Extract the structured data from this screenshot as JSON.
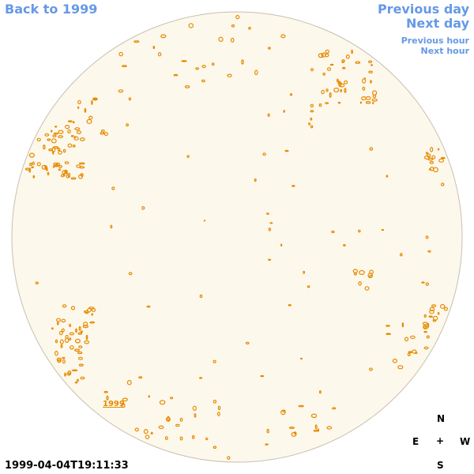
{
  "nav": {
    "back_label": "Back to 1999",
    "prev_day_label": "Previous day",
    "next_day_label": "Next day",
    "prev_hour_label": "Previous hour",
    "next_hour_label": "Next hour"
  },
  "map": {
    "year_label": "1999",
    "timestamp": "1999-04-04T19:11:33"
  },
  "compass": {
    "north": "N",
    "east": "E",
    "center": "+",
    "west": "W",
    "south": "S"
  },
  "colors": {
    "link": "#6699e6",
    "disk_fill": "#fdf8ec",
    "disk_outline": "#c8c0b0",
    "contour": "#e68a00"
  }
}
